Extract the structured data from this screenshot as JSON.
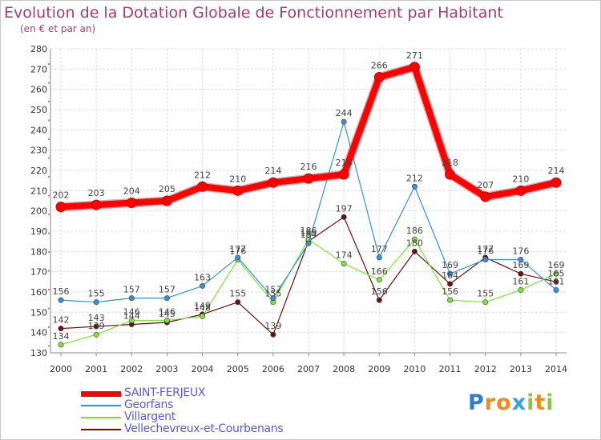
{
  "chart_data": {
    "type": "line",
    "title": "Evolution de la Dotation Globale de Fonctionnement par Habitant",
    "subtitle": "(en € et par an)",
    "xlabel": "",
    "ylabel": "",
    "categories": [
      "2000",
      "2001",
      "2002",
      "2003",
      "2004",
      "2005",
      "2006",
      "2007",
      "2008",
      "2009",
      "2010",
      "2011",
      "2012",
      "2013",
      "2014"
    ],
    "ylim": [
      130,
      280
    ],
    "yticks": [
      130,
      140,
      150,
      160,
      170,
      180,
      190,
      200,
      210,
      220,
      230,
      240,
      250,
      260,
      270,
      280
    ],
    "grid": true,
    "legend_position": "bottom-left",
    "series": [
      {
        "name": "SAINT-FERJEUX",
        "color": "#ff0000",
        "values": [
          202,
          203,
          204,
          205,
          212,
          210,
          214,
          216,
          218,
          266,
          271,
          218,
          207,
          210,
          214
        ]
      },
      {
        "name": "Georfans",
        "color": "#3a8fd0",
        "values": [
          156,
          155,
          157,
          157,
          163,
          177,
          157,
          184,
          244,
          177,
          212,
          169,
          176,
          176,
          161
        ]
      },
      {
        "name": "Villargent",
        "color": "#80e040",
        "values": [
          134,
          139,
          146,
          146,
          148,
          176,
          155,
          186,
          174,
          166,
          186,
          156,
          155,
          161,
          169
        ]
      },
      {
        "name": "Vellechevreux-et-Courbenans",
        "color": "#6b1010",
        "values": [
          142,
          143,
          144,
          145,
          149,
          155,
          139,
          185,
          197,
          156,
          180,
          164,
          177,
          169,
          165
        ]
      }
    ]
  },
  "legend": {
    "items": [
      {
        "label": "SAINT-FERJEUX"
      },
      {
        "label": "Georfans"
      },
      {
        "label": "Villargent"
      },
      {
        "label": "Vellechevreux-et-Courbenans"
      }
    ]
  },
  "logo": {
    "letters": [
      "P",
      "r",
      "o",
      "x",
      "i",
      "t",
      "i"
    ],
    "colors": [
      "#2a7fd4",
      "#f08a1c",
      "#f08a1c",
      "#3aa0e0",
      "#8cc63f",
      "#f08a1c",
      "#8cc63f"
    ]
  }
}
